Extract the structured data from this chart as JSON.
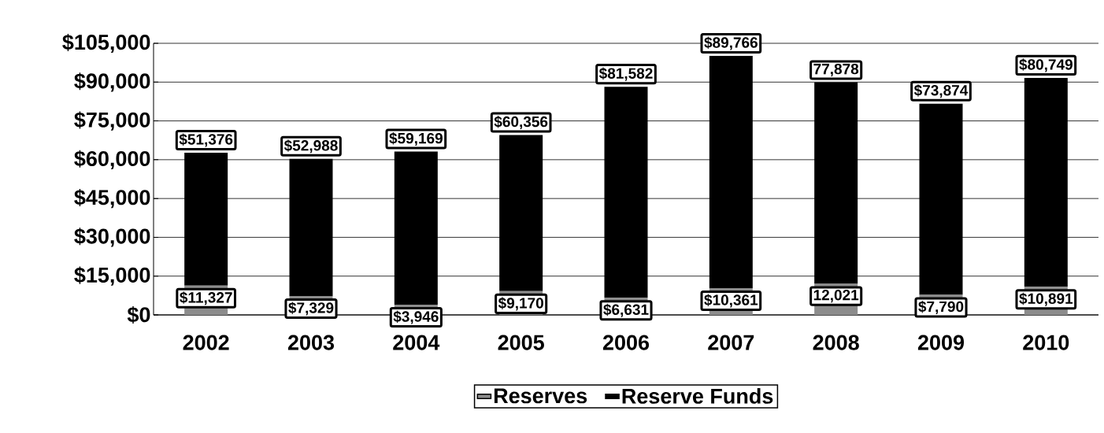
{
  "chart_data": {
    "type": "bar",
    "stacked": true,
    "categories": [
      "2002",
      "2003",
      "2004",
      "2005",
      "2006",
      "2007",
      "2008",
      "2009",
      "2010"
    ],
    "series": [
      {
        "name": "Reserves",
        "color": "#8c8c8c",
        "values": [
          11327,
          7329,
          3946,
          9170,
          6631,
          10361,
          12021,
          7790,
          10891
        ],
        "value_labels": [
          "$11,327",
          "$7,329",
          "$3,946",
          "$9,170",
          "$6,631",
          "$10,361",
          "12,021",
          "$7,790",
          "$10,891"
        ]
      },
      {
        "name": "Reserve Funds",
        "color": "#000000",
        "values": [
          51376,
          52988,
          59169,
          60356,
          81582,
          89766,
          77878,
          73874,
          80749
        ],
        "value_labels": [
          "$51,376",
          "$52,988",
          "$59,169",
          "$60,356",
          "$81,582",
          "$89,766",
          "77,878",
          "$73,874",
          "$80,749"
        ]
      }
    ],
    "ylim": [
      0,
      105000
    ],
    "yticks": [
      {
        "value": 0,
        "label": "$0"
      },
      {
        "value": 15000,
        "label": "$15,000"
      },
      {
        "value": 30000,
        "label": "$30,000"
      },
      {
        "value": 45000,
        "label": "$45,000"
      },
      {
        "value": 60000,
        "label": "$60,000"
      },
      {
        "value": 75000,
        "label": "$75,000"
      },
      {
        "value": 90000,
        "label": "$90,000"
      },
      {
        "value": 105000,
        "label": "$105,000"
      }
    ],
    "grid": "y",
    "legend": "bottom"
  }
}
